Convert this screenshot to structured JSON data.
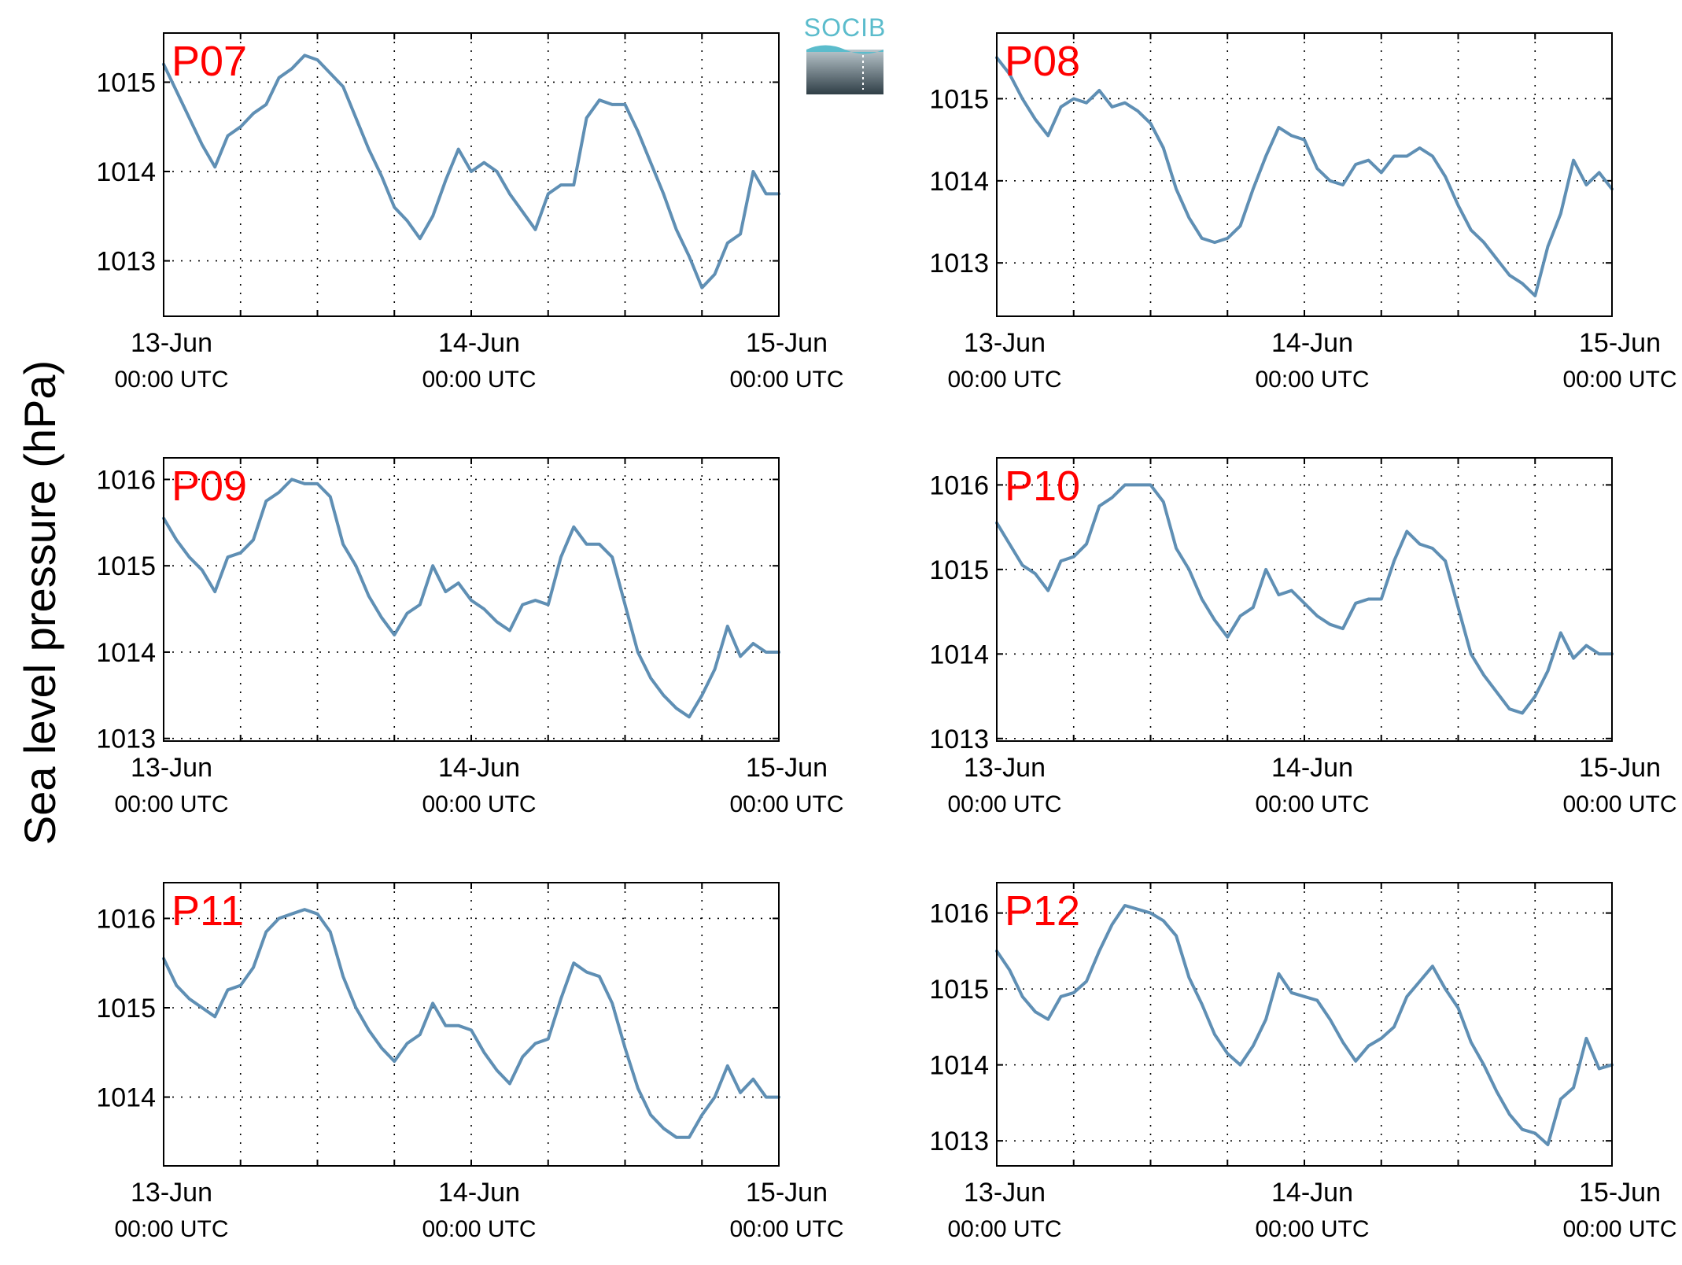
{
  "figure": {
    "ylabel": "Sea level pressure (hPa)",
    "logo_text": "SOCIB",
    "line_color": "#5f8fb4",
    "station_label_color": "#ff0000",
    "logo_color": "#5bbccc"
  },
  "chart_data": [
    {
      "type": "line",
      "title": "P07",
      "xlabel": "",
      "ylabel": "Sea level pressure (hPa)",
      "x_ticks": [
        {
          "date": "13-Jun",
          "time": "00:00 UTC",
          "hour": 0
        },
        {
          "date": "14-Jun",
          "time": "00:00 UTC",
          "hour": 24
        },
        {
          "date": "15-Jun",
          "time": "00:00 UTC",
          "hour": 48
        }
      ],
      "xlim_hours": [
        0,
        48
      ],
      "ylim": [
        1012.38,
        1015.55
      ],
      "y_ticks": [
        1013,
        1014,
        1015
      ],
      "grid": true,
      "x_hours": [
        0,
        1,
        2,
        3,
        4,
        5,
        6,
        7,
        8,
        9,
        10,
        11,
        12,
        13,
        14,
        15,
        16,
        17,
        18,
        19,
        20,
        21,
        22,
        23,
        24,
        25,
        26,
        27,
        28,
        29,
        30,
        31,
        32,
        33,
        34,
        35,
        36,
        37,
        38,
        39,
        40,
        41,
        42,
        43,
        44,
        45,
        46,
        47,
        48
      ],
      "values": [
        1015.2,
        1014.9,
        1014.6,
        1014.3,
        1014.05,
        1014.4,
        1014.5,
        1014.65,
        1014.75,
        1015.05,
        1015.15,
        1015.3,
        1015.25,
        1015.1,
        1014.95,
        1014.6,
        1014.25,
        1013.95,
        1013.6,
        1013.45,
        1013.25,
        1013.5,
        1013.9,
        1014.25,
        1014.0,
        1014.1,
        1014.0,
        1013.75,
        1013.55,
        1013.35,
        1013.75,
        1013.85,
        1013.85,
        1014.6,
        1014.8,
        1014.75,
        1014.75,
        1014.45,
        1014.1,
        1013.75,
        1013.35,
        1013.05,
        1012.7,
        1012.85,
        1013.2,
        1013.3,
        1014.0,
        1013.75,
        1013.75
      ]
    },
    {
      "type": "line",
      "title": "P08",
      "xlabel": "",
      "ylabel": "Sea level pressure (hPa)",
      "x_ticks": [
        {
          "date": "13-Jun",
          "time": "00:00 UTC",
          "hour": 0
        },
        {
          "date": "14-Jun",
          "time": "00:00 UTC",
          "hour": 24
        },
        {
          "date": "15-Jun",
          "time": "00:00 UTC",
          "hour": 48
        }
      ],
      "xlim_hours": [
        0,
        48
      ],
      "ylim": [
        1012.35,
        1015.8
      ],
      "y_ticks": [
        1013,
        1014,
        1015
      ],
      "grid": true,
      "x_hours": [
        0,
        1,
        2,
        3,
        4,
        5,
        6,
        7,
        8,
        9,
        10,
        11,
        12,
        13,
        14,
        15,
        16,
        17,
        18,
        19,
        20,
        21,
        22,
        23,
        24,
        25,
        26,
        27,
        28,
        29,
        30,
        31,
        32,
        33,
        34,
        35,
        36,
        37,
        38,
        39,
        40,
        41,
        42,
        43,
        44,
        45,
        46,
        47,
        48
      ],
      "values": [
        1015.5,
        1015.3,
        1015.0,
        1014.75,
        1014.55,
        1014.9,
        1015.0,
        1014.95,
        1015.1,
        1014.9,
        1014.95,
        1014.85,
        1014.7,
        1014.4,
        1013.9,
        1013.55,
        1013.3,
        1013.25,
        1013.3,
        1013.45,
        1013.9,
        1014.3,
        1014.65,
        1014.55,
        1014.5,
        1014.15,
        1014.0,
        1013.95,
        1014.2,
        1014.25,
        1014.1,
        1014.3,
        1014.3,
        1014.4,
        1014.3,
        1014.05,
        1013.7,
        1013.4,
        1013.25,
        1013.05,
        1012.85,
        1012.75,
        1012.6,
        1013.2,
        1013.6,
        1014.25,
        1013.95,
        1014.1,
        1013.9
      ]
    },
    {
      "type": "line",
      "title": "P09",
      "xlabel": "",
      "ylabel": "Sea level pressure (hPa)",
      "x_ticks": [
        {
          "date": "13-Jun",
          "time": "00:00 UTC",
          "hour": 0
        },
        {
          "date": "14-Jun",
          "time": "00:00 UTC",
          "hour": 24
        },
        {
          "date": "15-Jun",
          "time": "00:00 UTC",
          "hour": 48
        }
      ],
      "xlim_hours": [
        0,
        48
      ],
      "ylim": [
        1012.97,
        1016.25
      ],
      "y_ticks": [
        1013,
        1014,
        1015,
        1016
      ],
      "grid": true,
      "x_hours": [
        0,
        1,
        2,
        3,
        4,
        5,
        6,
        7,
        8,
        9,
        10,
        11,
        12,
        13,
        14,
        15,
        16,
        17,
        18,
        19,
        20,
        21,
        22,
        23,
        24,
        25,
        26,
        27,
        28,
        29,
        30,
        31,
        32,
        33,
        34,
        35,
        36,
        37,
        38,
        39,
        40,
        41,
        42,
        43,
        44,
        45,
        46,
        47,
        48
      ],
      "values": [
        1015.55,
        1015.3,
        1015.1,
        1014.95,
        1014.7,
        1015.1,
        1015.15,
        1015.3,
        1015.75,
        1015.85,
        1016.0,
        1015.95,
        1015.95,
        1015.8,
        1015.25,
        1015.0,
        1014.65,
        1014.4,
        1014.2,
        1014.45,
        1014.55,
        1015.0,
        1014.7,
        1014.8,
        1014.6,
        1014.5,
        1014.35,
        1014.25,
        1014.55,
        1014.6,
        1014.55,
        1015.1,
        1015.45,
        1015.25,
        1015.25,
        1015.1,
        1014.55,
        1014.0,
        1013.7,
        1013.5,
        1013.35,
        1013.25,
        1013.5,
        1013.8,
        1014.3,
        1013.95,
        1014.1,
        1014.0,
        1014.0
      ]
    },
    {
      "type": "line",
      "title": "P10",
      "xlabel": "",
      "ylabel": "Sea level pressure (hPa)",
      "x_ticks": [
        {
          "date": "13-Jun",
          "time": "00:00 UTC",
          "hour": 0
        },
        {
          "date": "14-Jun",
          "time": "00:00 UTC",
          "hour": 24
        },
        {
          "date": "15-Jun",
          "time": "00:00 UTC",
          "hour": 48
        }
      ],
      "xlim_hours": [
        0,
        48
      ],
      "ylim": [
        1012.97,
        1016.32
      ],
      "y_ticks": [
        1013,
        1014,
        1015,
        1016
      ],
      "grid": true,
      "x_hours": [
        0,
        1,
        2,
        3,
        4,
        5,
        6,
        7,
        8,
        9,
        10,
        11,
        12,
        13,
        14,
        15,
        16,
        17,
        18,
        19,
        20,
        21,
        22,
        23,
        24,
        25,
        26,
        27,
        28,
        29,
        30,
        31,
        32,
        33,
        34,
        35,
        36,
        37,
        38,
        39,
        40,
        41,
        42,
        43,
        44,
        45,
        46,
        47,
        48
      ],
      "values": [
        1015.55,
        1015.3,
        1015.05,
        1014.95,
        1014.75,
        1015.1,
        1015.15,
        1015.3,
        1015.75,
        1015.85,
        1016.0,
        1016.0,
        1016.0,
        1015.8,
        1015.25,
        1015.0,
        1014.65,
        1014.4,
        1014.2,
        1014.45,
        1014.55,
        1015.0,
        1014.7,
        1014.75,
        1014.6,
        1014.45,
        1014.35,
        1014.3,
        1014.6,
        1014.65,
        1014.65,
        1015.1,
        1015.45,
        1015.3,
        1015.25,
        1015.1,
        1014.55,
        1014.0,
        1013.75,
        1013.55,
        1013.35,
        1013.3,
        1013.5,
        1013.8,
        1014.25,
        1013.95,
        1014.1,
        1014.0,
        1014.0
      ]
    },
    {
      "type": "line",
      "title": "P11",
      "xlabel": "",
      "ylabel": "Sea level pressure (hPa)",
      "x_ticks": [
        {
          "date": "13-Jun",
          "time": "00:00 UTC",
          "hour": 0
        },
        {
          "date": "14-Jun",
          "time": "00:00 UTC",
          "hour": 24
        },
        {
          "date": "15-Jun",
          "time": "00:00 UTC",
          "hour": 48
        }
      ],
      "xlim_hours": [
        0,
        48
      ],
      "ylim": [
        1013.23,
        1016.4
      ],
      "y_ticks": [
        1014,
        1015,
        1016
      ],
      "grid": true,
      "x_hours": [
        0,
        1,
        2,
        3,
        4,
        5,
        6,
        7,
        8,
        9,
        10,
        11,
        12,
        13,
        14,
        15,
        16,
        17,
        18,
        19,
        20,
        21,
        22,
        23,
        24,
        25,
        26,
        27,
        28,
        29,
        30,
        31,
        32,
        33,
        34,
        35,
        36,
        37,
        38,
        39,
        40,
        41,
        42,
        43,
        44,
        45,
        46,
        47,
        48
      ],
      "values": [
        1015.55,
        1015.25,
        1015.1,
        1015.0,
        1014.9,
        1015.2,
        1015.25,
        1015.45,
        1015.85,
        1016.0,
        1016.05,
        1016.1,
        1016.05,
        1015.85,
        1015.35,
        1015.0,
        1014.75,
        1014.55,
        1014.4,
        1014.6,
        1014.7,
        1015.05,
        1014.8,
        1014.8,
        1014.75,
        1014.5,
        1014.3,
        1014.15,
        1014.45,
        1014.6,
        1014.65,
        1015.1,
        1015.5,
        1015.4,
        1015.35,
        1015.05,
        1014.55,
        1014.1,
        1013.8,
        1013.65,
        1013.55,
        1013.55,
        1013.8,
        1014.0,
        1014.35,
        1014.05,
        1014.2,
        1014.0,
        1014.0
      ]
    },
    {
      "type": "line",
      "title": "P12",
      "xlabel": "",
      "ylabel": "Sea level pressure (hPa)",
      "x_ticks": [
        {
          "date": "13-Jun",
          "time": "00:00 UTC",
          "hour": 0
        },
        {
          "date": "14-Jun",
          "time": "00:00 UTC",
          "hour": 24
        },
        {
          "date": "15-Jun",
          "time": "00:00 UTC",
          "hour": 48
        }
      ],
      "xlim_hours": [
        0,
        48
      ],
      "ylim": [
        1012.67,
        1016.4
      ],
      "y_ticks": [
        1013,
        1014,
        1015,
        1016
      ],
      "grid": true,
      "x_hours": [
        0,
        1,
        2,
        3,
        4,
        5,
        6,
        7,
        8,
        9,
        10,
        11,
        12,
        13,
        14,
        15,
        16,
        17,
        18,
        19,
        20,
        21,
        22,
        23,
        24,
        25,
        26,
        27,
        28,
        29,
        30,
        31,
        32,
        33,
        34,
        35,
        36,
        37,
        38,
        39,
        40,
        41,
        42,
        43,
        44,
        45,
        46,
        47,
        48
      ],
      "values": [
        1015.5,
        1015.25,
        1014.9,
        1014.7,
        1014.6,
        1014.9,
        1014.95,
        1015.1,
        1015.5,
        1015.85,
        1016.1,
        1016.05,
        1016.0,
        1015.9,
        1015.7,
        1015.15,
        1014.8,
        1014.4,
        1014.15,
        1014.0,
        1014.25,
        1014.6,
        1015.2,
        1014.95,
        1014.9,
        1014.85,
        1014.6,
        1014.3,
        1014.05,
        1014.25,
        1014.35,
        1014.5,
        1014.9,
        1015.1,
        1015.3,
        1015.0,
        1014.75,
        1014.3,
        1014.0,
        1013.65,
        1013.35,
        1013.15,
        1013.1,
        1012.95,
        1013.55,
        1013.7,
        1014.35,
        1013.95,
        1014.0
      ]
    }
  ]
}
